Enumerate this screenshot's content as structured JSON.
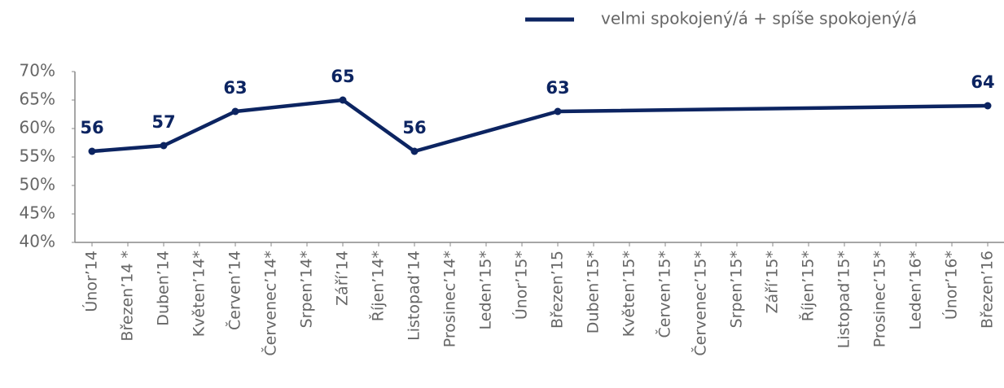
{
  "chart_data": {
    "type": "line",
    "categories": [
      "Únor’14",
      "Březen’14 *",
      "Duben’14",
      "Květen’14*",
      "Červen’14",
      "Červenec’14*",
      "Srpen’14*",
      "Září’14",
      "Říjen’14*",
      "Listopad’14",
      "Prosinec’14*",
      "Leden’15*",
      "Únor’15*",
      "Březen’15",
      "Duben’15*",
      "Květen’15*",
      "Červen’15*",
      "Červenec’15*",
      "Srpen’15*",
      "Září’15*",
      "Říjen’15*",
      "Listopad’15*",
      "Prosinec’15*",
      "Leden’16*",
      "Únor’16*",
      "Březen’16"
    ],
    "series": [
      {
        "name": "velmi spokojený/á + spíše spokojený/á",
        "color": "#0c2461",
        "values": [
          56,
          null,
          57,
          null,
          63,
          null,
          null,
          65,
          null,
          56,
          null,
          null,
          null,
          63,
          null,
          null,
          null,
          null,
          null,
          null,
          null,
          null,
          null,
          null,
          null,
          64
        ]
      }
    ],
    "span_gaps": true,
    "ylim": [
      40,
      70
    ],
    "yticks": [
      {
        "value": 40,
        "label": "40%"
      },
      {
        "value": 45,
        "label": "45%"
      },
      {
        "value": 50,
        "label": "50%"
      },
      {
        "value": 55,
        "label": "55%"
      },
      {
        "value": 60,
        "label": "60%"
      },
      {
        "value": 65,
        "label": "65%"
      },
      {
        "value": 70,
        "label": "70%"
      }
    ],
    "legend": "top-right"
  }
}
